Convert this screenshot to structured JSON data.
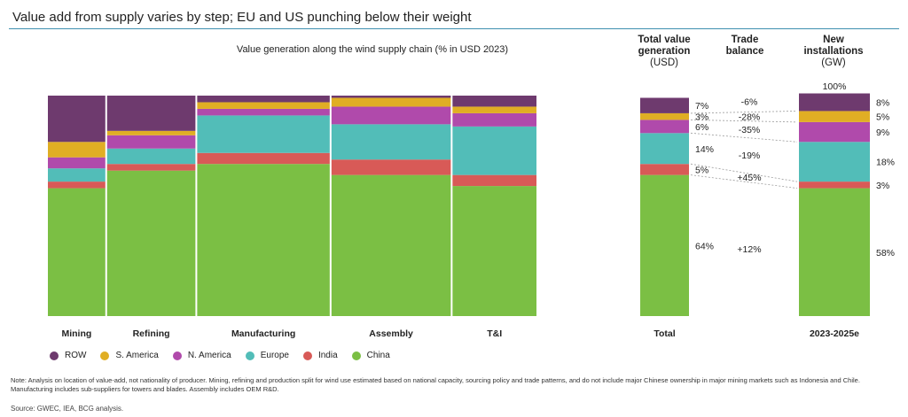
{
  "title": "Value add from supply varies by step; EU and US punching below their weight",
  "subtitle": "Value generation along the wind supply chain (% in USD 2023)",
  "col_heads": {
    "total_value": {
      "line1": "Total value",
      "line2": "generation",
      "sub": "(USD)"
    },
    "trade": {
      "line1": "Trade",
      "line2": "balance"
    },
    "new": {
      "line1": "New",
      "line2": "installations",
      "sub": "(GW)"
    }
  },
  "colors": {
    "ROW": "#6e3a6e",
    "S. America": "#e0ae24",
    "N. America": "#b04aab",
    "Europe": "#52bdb8",
    "India": "#d85a57",
    "China": "#7bbf44"
  },
  "legend": [
    "ROW",
    "S. America",
    "N. America",
    "Europe",
    "India",
    "China"
  ],
  "chart_data": [
    {
      "type": "bar",
      "stacked": true,
      "variable_width": true,
      "title": "Value generation along the wind supply chain (% in USD 2023)",
      "categories": [
        "Mining",
        "Refining",
        "Manufacturing",
        "Assembly",
        "T&I"
      ],
      "widths": [
        13,
        20,
        30,
        27,
        19
      ],
      "series": [
        {
          "name": "China",
          "values": [
            58,
            66,
            69,
            64,
            59
          ]
        },
        {
          "name": "India",
          "values": [
            3,
            3,
            5,
            7,
            5
          ]
        },
        {
          "name": "Europe",
          "values": [
            6,
            7,
            17,
            16,
            22
          ]
        },
        {
          "name": "N. America",
          "values": [
            5,
            6,
            3,
            8,
            6
          ]
        },
        {
          "name": "S. America",
          "values": [
            7,
            2,
            3,
            4,
            3
          ]
        },
        {
          "name": "ROW",
          "values": [
            21,
            16,
            3,
            1,
            5
          ]
        }
      ],
      "ylim": [
        0,
        100
      ]
    },
    {
      "type": "bar",
      "stacked": true,
      "categories": [
        "Total",
        "2023-2025e"
      ],
      "series": [
        {
          "name": "China",
          "values": [
            64,
            58
          ]
        },
        {
          "name": "India",
          "values": [
            5,
            3
          ]
        },
        {
          "name": "Europe",
          "values": [
            14,
            18
          ]
        },
        {
          "name": "N. America",
          "values": [
            6,
            9
          ]
        },
        {
          "name": "S. America",
          "values": [
            3,
            5
          ]
        },
        {
          "name": "ROW",
          "values": [
            7,
            8
          ]
        }
      ],
      "top_label_2023_2025e": "100%",
      "labels_total": [
        "7%",
        "3%",
        "6%",
        "14%",
        "5%",
        "64%"
      ],
      "labels_new": [
        "8%",
        "5%",
        "9%",
        "18%",
        "3%",
        "58%"
      ],
      "trade_balance": [
        {
          "name": "ROW",
          "value": "-6%"
        },
        {
          "name": "S. America",
          "value": "-28%"
        },
        {
          "name": "N. America",
          "value": "-35%"
        },
        {
          "name": "Europe",
          "value": "-19%"
        },
        {
          "name": "India",
          "value": "+45%"
        },
        {
          "name": "China",
          "value": "+12%"
        }
      ]
    }
  ],
  "note": "Note: Analysis on location of value-add, not nationality of producer. Mining, refining and production split for wind use estimated based on national capacity, sourcing policy and trade patterns, and do not include major Chinese ownership in major mining markets such as Indonesia and Chile. Manufacturing includes sub-suppliers for towers and blades. Assembly includes OEM R&D.",
  "source": "Source: GWEC, IEA, BCG analysis."
}
